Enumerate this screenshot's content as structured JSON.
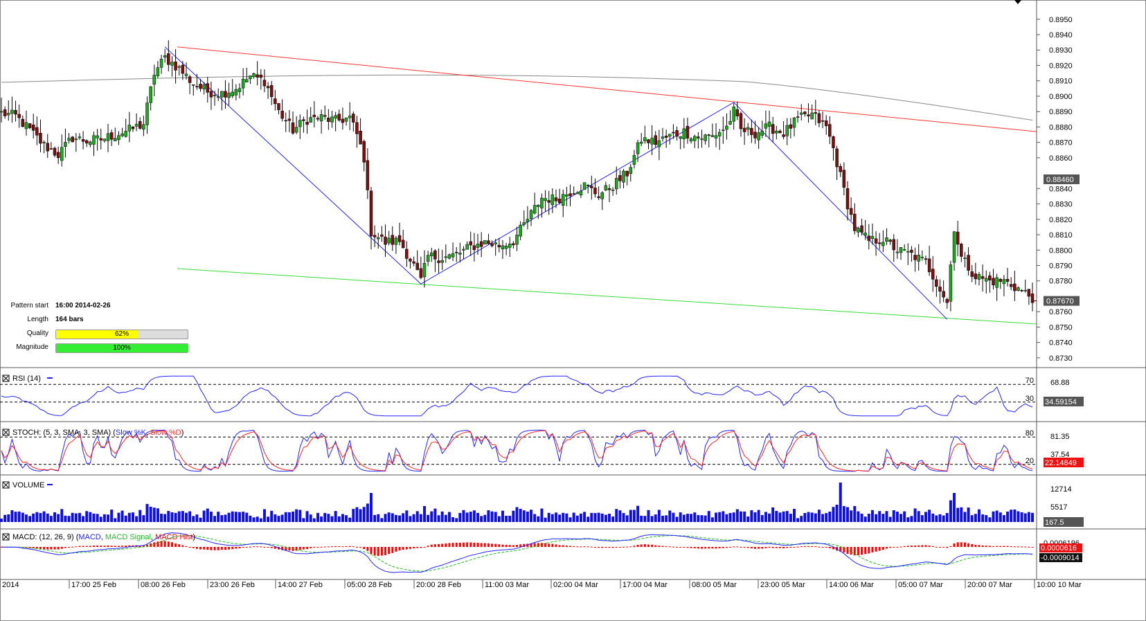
{
  "colors": {
    "bull": "#1ea81e",
    "bear": "#7a1010",
    "resistance": "#ff3333",
    "support": "#33dd33",
    "pattern": "#2222ff",
    "ma": "#888888",
    "rsi": "#2222ff",
    "stoch_k": "#2222ff",
    "stoch_d": "#ff2222",
    "volume": "#1010dd",
    "macd": "#2222ff",
    "macd_signal": "#22bb22",
    "macd_hist": "#ff0000"
  },
  "pattern_info": {
    "start_label": "Pattern start",
    "start_value": "16:00 2014-02-26",
    "length_label": "Length",
    "length_value": "164 bars",
    "quality_label": "Quality",
    "quality_value": "62%",
    "quality_pct": 62,
    "magnitude_label": "Magnitude",
    "magnitude_value": "100%",
    "magnitude_pct": 100
  },
  "chart_data": {
    "type": "candlestick",
    "price_axis": {
      "min": 0.8725,
      "max": 0.8958,
      "ticks": [
        "0.8950",
        "0.8940",
        "0.8930",
        "0.8920",
        "0.8910",
        "0.8900",
        "0.8890",
        "0.8880",
        "0.8870",
        "0.8860",
        "0.8840",
        "0.8830",
        "0.8820",
        "0.8810",
        "0.8800",
        "0.8790",
        "0.8780",
        "0.8760",
        "0.8750",
        "0.8740",
        "0.8730"
      ],
      "last_price": "0.87670",
      "ma_value": "0.88460"
    },
    "x_axis_labels": [
      "2014",
      "17:00 25 Feb",
      "08:00 26 Feb",
      "23:00 26 Feb",
      "14:00 27 Feb",
      "05:00 28 Feb",
      "20:00 28 Feb",
      "11:00 03 Mar",
      "02:00 04 Mar",
      "17:00 04 Mar",
      "08:00 05 Mar",
      "23:00 05 Mar",
      "14:00 06 Mar",
      "05:00 07 Mar",
      "20:00 07 Mar",
      "10:00 10 Mar"
    ],
    "close_path": [
      [
        0,
        0.8889
      ],
      [
        4,
        0.8887
      ],
      [
        8,
        0.8878
      ],
      [
        12,
        0.8868
      ],
      [
        16,
        0.8862
      ],
      [
        20,
        0.8873
      ],
      [
        24,
        0.8871
      ],
      [
        28,
        0.8872
      ],
      [
        32,
        0.8875
      ],
      [
        36,
        0.8878
      ],
      [
        40,
        0.8882
      ],
      [
        43,
        0.8915
      ],
      [
        46,
        0.8925
      ],
      [
        50,
        0.8918
      ],
      [
        54,
        0.8908
      ],
      [
        58,
        0.8903
      ],
      [
        62,
        0.8902
      ],
      [
        66,
        0.8905
      ],
      [
        70,
        0.8913
      ],
      [
        74,
        0.891
      ],
      [
        78,
        0.889
      ],
      [
        82,
        0.8878
      ],
      [
        86,
        0.8885
      ],
      [
        90,
        0.8886
      ],
      [
        94,
        0.8884
      ],
      [
        98,
        0.8886
      ],
      [
        100,
        0.8875
      ],
      [
        102,
        0.886
      ],
      [
        104,
        0.8812
      ],
      [
        108,
        0.8805
      ],
      [
        112,
        0.8806
      ],
      [
        116,
        0.879
      ],
      [
        118,
        0.878
      ],
      [
        120,
        0.8796
      ],
      [
        124,
        0.8795
      ],
      [
        128,
        0.8797
      ],
      [
        132,
        0.8802
      ],
      [
        136,
        0.8805
      ],
      [
        140,
        0.8803
      ],
      [
        144,
        0.8806
      ],
      [
        148,
        0.882
      ],
      [
        152,
        0.8834
      ],
      [
        156,
        0.8833
      ],
      [
        160,
        0.8838
      ],
      [
        164,
        0.8842
      ],
      [
        168,
        0.8836
      ],
      [
        172,
        0.8842
      ],
      [
        176,
        0.885
      ],
      [
        180,
        0.8872
      ],
      [
        184,
        0.887
      ],
      [
        188,
        0.8874
      ],
      [
        192,
        0.8877
      ],
      [
        196,
        0.8873
      ],
      [
        200,
        0.8874
      ],
      [
        204,
        0.888
      ],
      [
        206,
        0.889
      ],
      [
        208,
        0.8878
      ],
      [
        212,
        0.8876
      ],
      [
        216,
        0.888
      ],
      [
        220,
        0.8876
      ],
      [
        224,
        0.8885
      ],
      [
        228,
        0.8888
      ],
      [
        232,
        0.888
      ],
      [
        234,
        0.8866
      ],
      [
        236,
        0.8848
      ],
      [
        238,
        0.883
      ],
      [
        240,
        0.8814
      ],
      [
        244,
        0.8806
      ],
      [
        248,
        0.8807
      ],
      [
        252,
        0.88
      ],
      [
        256,
        0.8797
      ],
      [
        260,
        0.8792
      ],
      [
        264,
        0.8775
      ],
      [
        266,
        0.8766
      ],
      [
        268,
        0.8815
      ],
      [
        270,
        0.8795
      ],
      [
        274,
        0.8783
      ],
      [
        278,
        0.878
      ],
      [
        282,
        0.878
      ],
      [
        286,
        0.8775
      ],
      [
        290,
        0.8769
      ]
    ],
    "trend_lines": {
      "resistance": [
        [
          0.8932,
          0
        ],
        [
          0.8877,
          1
        ]
      ],
      "support": [
        [
          0.8788,
          0
        ],
        [
          0.8752,
          1
        ]
      ]
    },
    "rsi": {
      "label": "RSI (14)",
      "levels": [
        "70",
        "30"
      ],
      "axis_value": "68.88",
      "last": "34.59154"
    },
    "stoch": {
      "label": "STOCH: (5, 3, SMA, 3, SMA)",
      "k_label": "Slow %K",
      "d_label": "Slow %D",
      "levels": [
        "80",
        "20"
      ],
      "axis_values": [
        "81.35",
        "37.54"
      ],
      "last": "22.14849"
    },
    "volume": {
      "label": "VOLUME",
      "axis_values": [
        "12714",
        "5517"
      ],
      "last": "167.5"
    },
    "macd": {
      "label": "MACD: (12, 26, 9)",
      "macd_label": "MACD",
      "signal_label": "MACD Signal",
      "hist_label": "MACD Hist",
      "axis_values": [
        "0.0006196"
      ],
      "last_values": [
        "0.0000616",
        "-0.0009014"
      ]
    }
  }
}
